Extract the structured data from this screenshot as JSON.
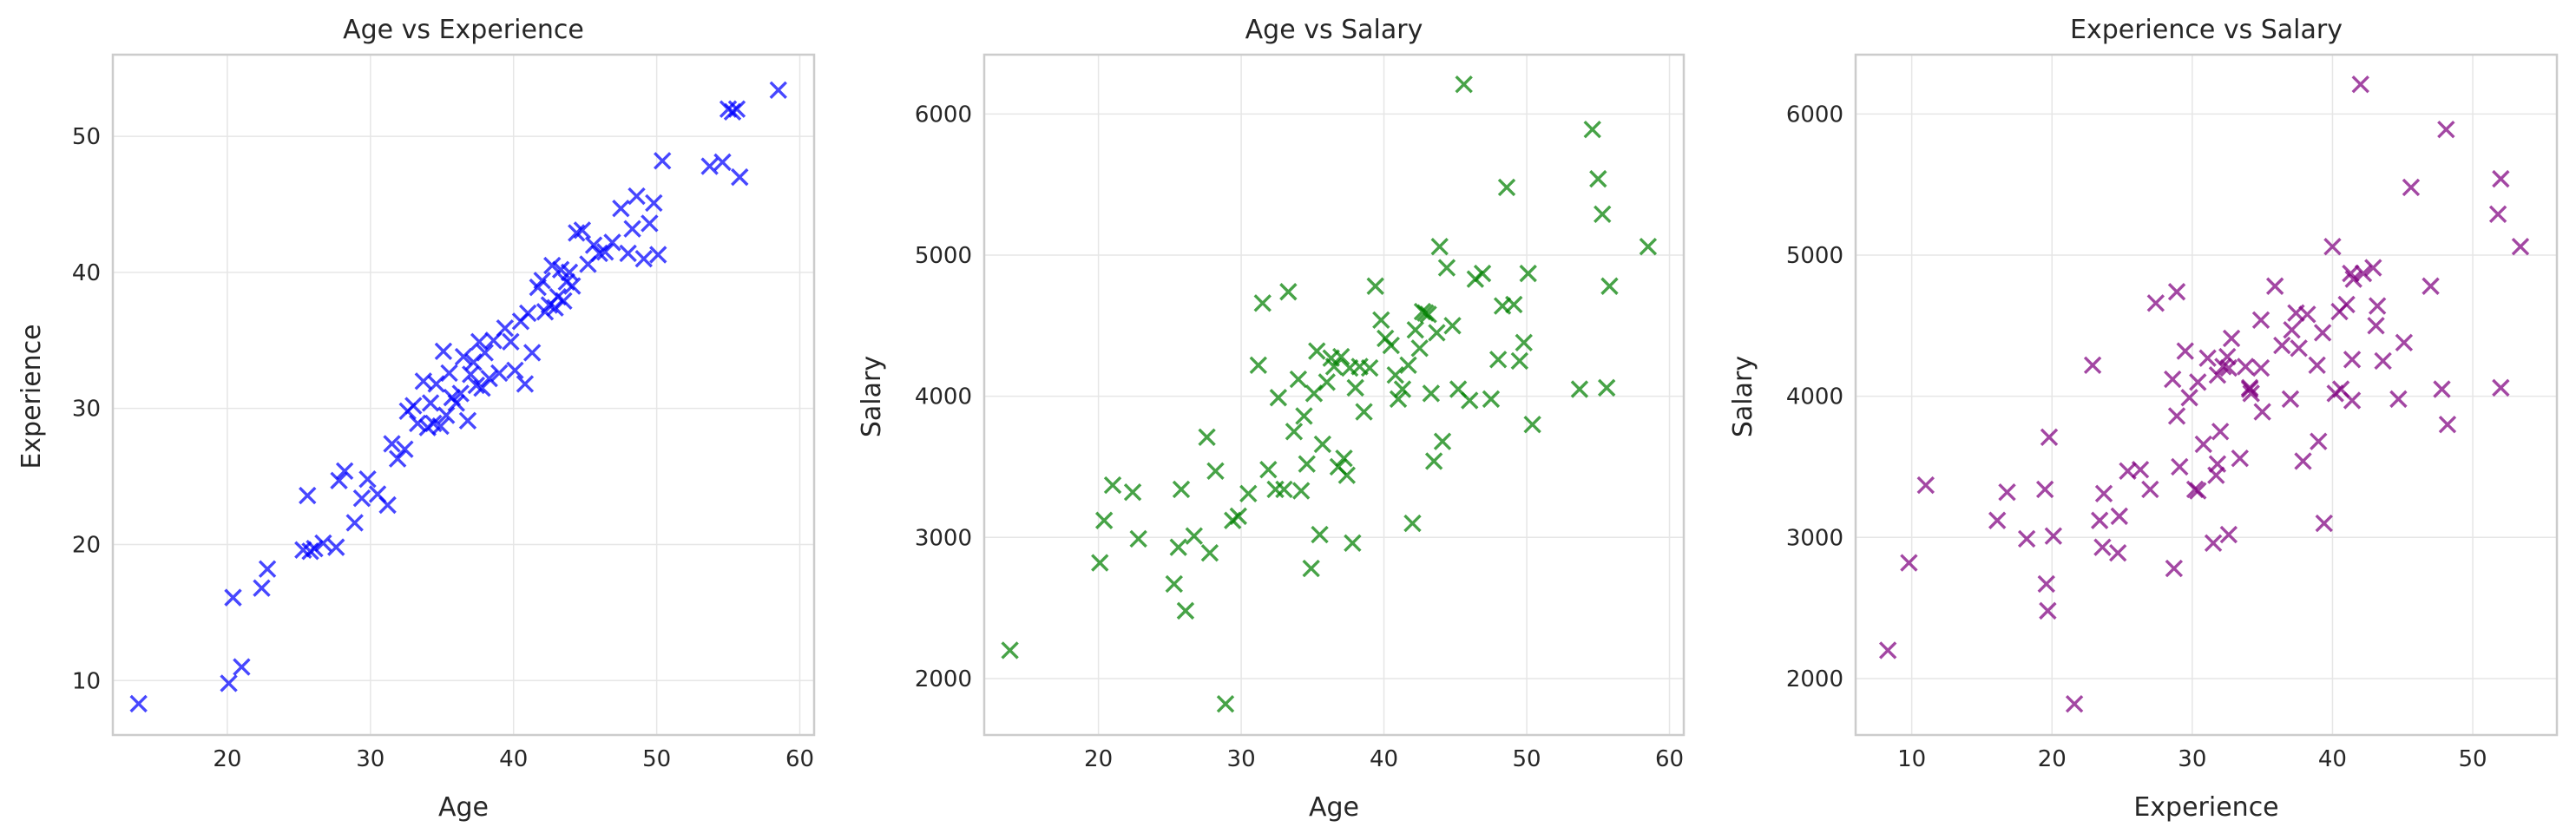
{
  "colors": {
    "panel1": "#0000ff",
    "panel2": "#008000",
    "panel3": "#800080",
    "grid": "#e6e6e6",
    "frame": "#cccccc",
    "text": "#262626"
  },
  "marker": "x",
  "chart_data": [
    {
      "type": "scatter",
      "title": "Age vs Experience",
      "xlabel": "Age",
      "ylabel": "Experience",
      "xlim": [
        12,
        61
      ],
      "ylim": [
        6,
        56
      ],
      "xticks": [
        20,
        30,
        40,
        50,
        60
      ],
      "yticks": [
        10,
        20,
        30,
        40,
        50
      ],
      "grid": true,
      "x": [
        13.8,
        20.1,
        20.4,
        21.0,
        22.4,
        22.8,
        25.3,
        25.6,
        25.8,
        26.1,
        26.7,
        27.6,
        27.8,
        28.2,
        28.9,
        29.4,
        29.8,
        30.5,
        31.2,
        31.5,
        31.9,
        32.4,
        32.6,
        33.0,
        33.3,
        33.7,
        34.0,
        34.2,
        34.4,
        34.6,
        34.9,
        35.1,
        35.3,
        35.5,
        35.7,
        36.0,
        36.3,
        36.5,
        36.8,
        37.0,
        37.2,
        37.4,
        37.6,
        37.8,
        38.0,
        38.3,
        38.6,
        39.0,
        39.4,
        39.8,
        40.1,
        40.5,
        40.8,
        41.0,
        41.3,
        41.7,
        42.0,
        42.2,
        42.5,
        42.7,
        42.9,
        43.1,
        43.3,
        43.5,
        43.7,
        43.9,
        44.1,
        44.4,
        44.8,
        45.2,
        45.6,
        46.0,
        46.4,
        46.9,
        47.5,
        48.0,
        48.3,
        48.6,
        49.1,
        49.5,
        49.8,
        50.1,
        50.4,
        53.7,
        54.6,
        55.0,
        55.3,
        55.6,
        55.8,
        58.5
      ],
      "y": [
        8.3,
        9.8,
        16.1,
        11.0,
        16.8,
        18.2,
        19.6,
        23.6,
        19.5,
        19.7,
        20.1,
        19.8,
        24.7,
        25.4,
        21.6,
        23.4,
        24.8,
        23.7,
        22.9,
        27.4,
        26.3,
        27.0,
        29.8,
        30.2,
        28.9,
        32.0,
        28.6,
        30.4,
        28.9,
        31.8,
        28.7,
        34.2,
        29.5,
        32.6,
        30.8,
        30.4,
        31.1,
        33.8,
        29.1,
        32.5,
        33.4,
        31.7,
        34.9,
        31.5,
        34.1,
        32.2,
        35.0,
        32.6,
        35.9,
        34.9,
        32.8,
        36.4,
        31.8,
        37.0,
        34.1,
        38.9,
        39.4,
        37.1,
        37.6,
        40.5,
        37.4,
        38.2,
        40.2,
        37.9,
        39.3,
        40.0,
        39.0,
        42.9,
        43.1,
        40.6,
        42.0,
        41.4,
        41.5,
        42.2,
        44.7,
        41.4,
        43.2,
        45.6,
        41.0,
        43.6,
        45.1,
        41.3,
        48.2,
        47.8,
        48.1,
        52.0,
        51.8,
        52.0,
        47.0,
        53.4
      ]
    },
    {
      "type": "scatter",
      "title": "Age vs Salary",
      "xlabel": "Age",
      "ylabel": "Salary",
      "xlim": [
        12,
        61
      ],
      "ylim": [
        1600,
        6420
      ],
      "xticks": [
        20,
        30,
        40,
        50,
        60
      ],
      "yticks": [
        2000,
        3000,
        4000,
        5000,
        6000
      ],
      "grid": true,
      "x": [
        13.8,
        20.1,
        20.4,
        21.0,
        22.4,
        22.8,
        25.3,
        25.6,
        25.8,
        26.1,
        26.7,
        27.6,
        27.8,
        28.2,
        28.9,
        29.4,
        29.8,
        30.5,
        31.2,
        31.5,
        31.9,
        32.4,
        32.6,
        33.0,
        33.3,
        33.7,
        34.0,
        34.2,
        34.4,
        34.6,
        34.9,
        35.1,
        35.3,
        35.5,
        35.7,
        36.0,
        36.3,
        36.5,
        36.8,
        37.0,
        37.2,
        37.4,
        37.6,
        37.8,
        38.0,
        38.3,
        38.6,
        39.0,
        39.4,
        39.8,
        40.1,
        40.5,
        40.8,
        41.0,
        41.3,
        41.7,
        42.0,
        42.2,
        42.5,
        42.7,
        42.9,
        43.1,
        43.3,
        43.5,
        43.7,
        43.9,
        44.1,
        44.4,
        44.8,
        45.2,
        45.6,
        46.0,
        46.4,
        46.9,
        47.5,
        48.0,
        48.3,
        48.6,
        49.1,
        49.5,
        49.8,
        50.1,
        50.4,
        53.7,
        54.6,
        55.0,
        55.3,
        55.6,
        55.8,
        58.5
      ],
      "y": [
        2200,
        2820,
        3120,
        3370,
        3320,
        2990,
        2670,
        2930,
        3340,
        2480,
        3010,
        3710,
        2890,
        3470,
        1820,
        3120,
        3150,
        3310,
        4220,
        4660,
        3480,
        3340,
        3990,
        3340,
        4740,
        3750,
        4120,
        3330,
        3860,
        3520,
        2780,
        4020,
        4320,
        3020,
        3660,
        4100,
        4270,
        4210,
        3500,
        4280,
        3560,
        3440,
        4200,
        2960,
        4060,
        4210,
        3890,
        4200,
        4780,
        4540,
        4410,
        4360,
        4150,
        3980,
        4050,
        4220,
        3100,
        4470,
        4340,
        4600,
        4590,
        4580,
        4020,
        3540,
        4450,
        5060,
        3680,
        4910,
        4500,
        4050,
        6210,
        3970,
        4830,
        4870,
        3980,
        4260,
        4640,
        5480,
        4650,
        4250,
        4380,
        4870,
        3800,
        4050,
        5890,
        5540,
        5290,
        4060,
        4780,
        5060
      ]
    },
    {
      "type": "scatter",
      "title": "Experience vs Salary",
      "xlabel": "Experience",
      "ylabel": "Salary",
      "xlim": [
        6,
        56
      ],
      "ylim": [
        1600,
        6420
      ],
      "xticks": [
        10,
        20,
        30,
        40,
        50
      ],
      "yticks": [
        2000,
        3000,
        4000,
        5000,
        6000
      ],
      "grid": true,
      "x": [
        8.3,
        9.8,
        16.1,
        11.0,
        16.8,
        18.2,
        19.6,
        23.6,
        19.5,
        19.7,
        20.1,
        19.8,
        24.7,
        25.4,
        21.6,
        23.4,
        24.8,
        23.7,
        22.9,
        27.4,
        26.3,
        27.0,
        29.8,
        30.2,
        28.9,
        32.0,
        28.6,
        30.4,
        28.9,
        31.8,
        28.7,
        34.2,
        29.5,
        32.6,
        30.8,
        30.4,
        31.1,
        33.8,
        29.1,
        32.5,
        33.4,
        31.7,
        34.9,
        31.5,
        34.1,
        32.2,
        35.0,
        32.6,
        35.9,
        34.9,
        32.8,
        36.4,
        31.8,
        37.0,
        34.1,
        38.9,
        39.4,
        37.1,
        37.6,
        40.5,
        37.4,
        38.2,
        40.2,
        37.9,
        39.3,
        40.0,
        39.0,
        42.9,
        43.1,
        40.6,
        42.0,
        41.4,
        41.5,
        42.2,
        44.7,
        41.4,
        43.2,
        45.6,
        41.0,
        43.6,
        45.1,
        41.3,
        48.2,
        47.8,
        48.1,
        52.0,
        51.8,
        52.0,
        47.0,
        53.4
      ],
      "y": [
        2200,
        2820,
        3120,
        3370,
        3320,
        2990,
        2670,
        2930,
        3340,
        2480,
        3010,
        3710,
        2890,
        3470,
        1820,
        3120,
        3150,
        3310,
        4220,
        4660,
        3480,
        3340,
        3990,
        3340,
        4740,
        3750,
        4120,
        3330,
        3860,
        3520,
        2780,
        4020,
        4320,
        3020,
        3660,
        4100,
        4270,
        4210,
        3500,
        4280,
        3560,
        3440,
        4200,
        2960,
        4060,
        4210,
        3890,
        4200,
        4780,
        4540,
        4410,
        4360,
        4150,
        3980,
        4050,
        4220,
        3100,
        4470,
        4340,
        4600,
        4590,
        4580,
        4020,
        3540,
        4450,
        5060,
        3680,
        4910,
        4500,
        4050,
        6210,
        3970,
        4830,
        4870,
        3980,
        4260,
        4640,
        5480,
        4650,
        4250,
        4380,
        4870,
        3800,
        4050,
        5890,
        5540,
        5290,
        4060,
        4780,
        5060
      ]
    }
  ]
}
